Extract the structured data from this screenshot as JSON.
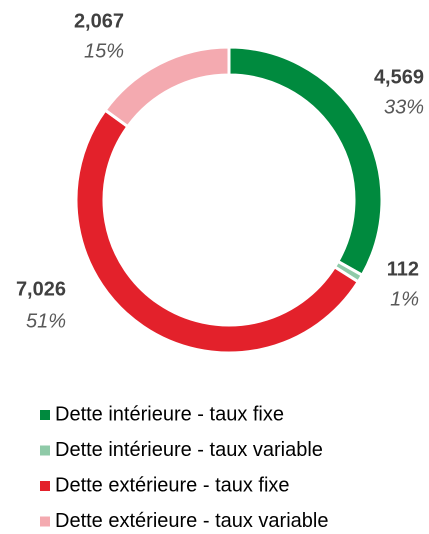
{
  "chart_data": {
    "type": "donut",
    "categories": [
      "Dette intérieure - taux fixe",
      "Dette intérieure - taux variable",
      "Dette extérieure - taux fixe",
      "Dette extérieure - taux variable"
    ],
    "values": [
      4569,
      112,
      7026,
      2067
    ],
    "value_labels": [
      "4,569",
      "112",
      "7,026",
      "2,067"
    ],
    "percent_labels": [
      "33%",
      "1%",
      "51%",
      "15%"
    ],
    "colors": [
      "#008a3e",
      "#8fcaa8",
      "#e3212b",
      "#f4aab0"
    ],
    "legend": "bottom"
  }
}
